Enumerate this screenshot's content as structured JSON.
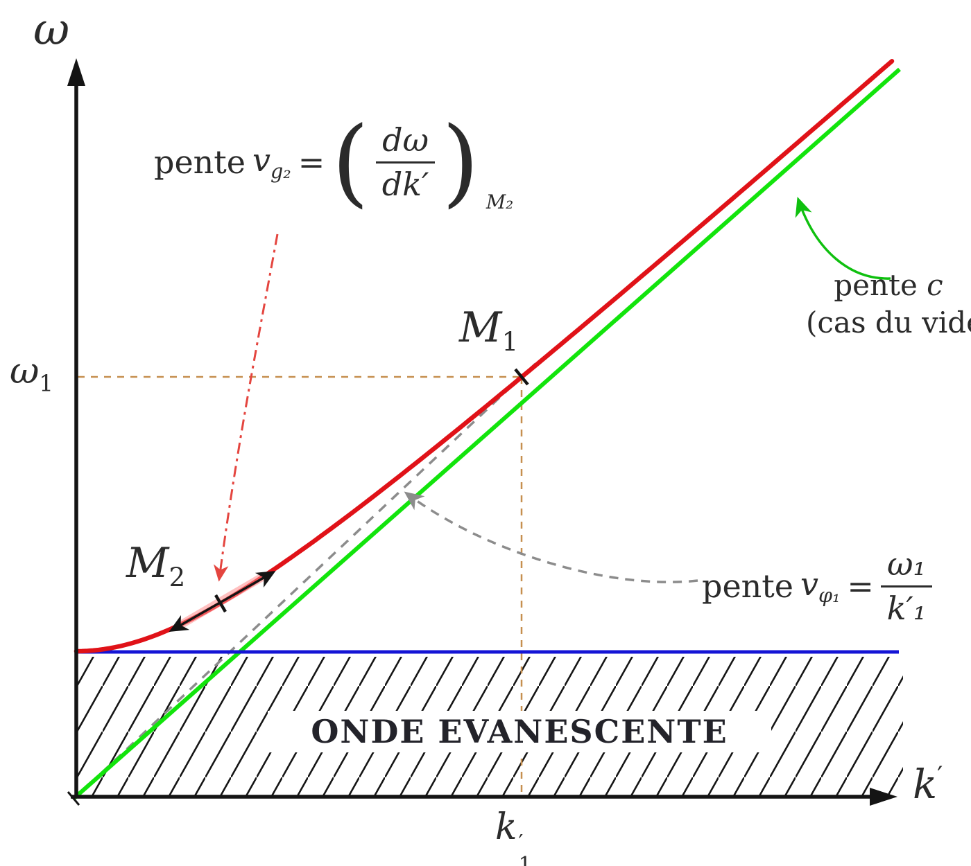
{
  "colors": {
    "curve_red": "#e01218",
    "light_line_green": "#12e40c",
    "cutoff_blue": "#1414d6",
    "guide_tan": "#c68f4f",
    "phase_gray": "#8c8c8c",
    "arrow_red": "#e4453f",
    "arrow_green": "#0fc00f",
    "highlight_pink": "#ff8f8f",
    "ink": "#141414"
  },
  "labels": {
    "omega_axis": "ω",
    "k_axis": {
      "base": "k",
      "prime": "′"
    },
    "omega1": {
      "base": "ω",
      "sub": "1"
    },
    "k1": {
      "base": "k",
      "sup": "′",
      "sub": "1"
    },
    "m1": {
      "base": "M",
      "sub": "1"
    },
    "m2": {
      "base": "M",
      "sub": "2"
    },
    "onde": "ONDE EVANESCENTE",
    "vg2": {
      "pente": "pente",
      "v": "v",
      "vsub": "g₂",
      "eq": "=",
      "lparen": "(",
      "num": "dω",
      "den": "dk′",
      "rparen": ")",
      "outer_sub": "M₂"
    },
    "pente_c": {
      "pente": "pente",
      "c": "c",
      "line2": "(cas du vide)"
    },
    "vphi1": {
      "pente": "pente",
      "v": "v",
      "vsub": "φ₁",
      "eq": "=",
      "num": "ω₁",
      "den": "k′₁"
    }
  }
}
